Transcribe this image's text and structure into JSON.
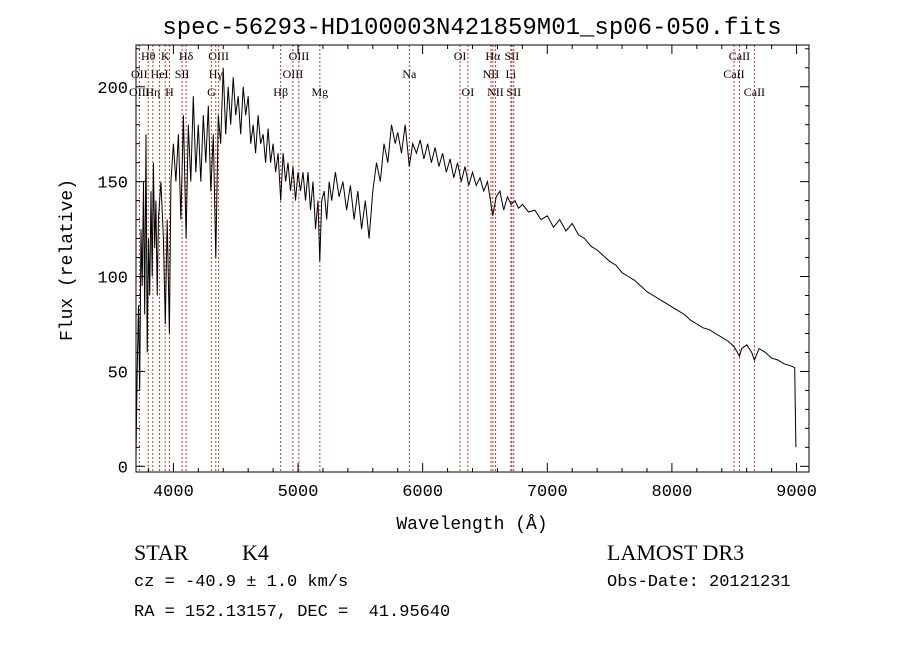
{
  "chart_data": {
    "type": "line",
    "title": "spec-56293-HD100003N421859M01_sp06-050.fits",
    "xlabel": "Wavelength (Å)",
    "ylabel": "Flux (relative)",
    "xlim": [
      3700,
      9100
    ],
    "ylim": [
      -3,
      222
    ],
    "x_ticks": [
      4000,
      5000,
      6000,
      7000,
      8000,
      9000
    ],
    "y_ticks": [
      0,
      50,
      100,
      150,
      200
    ],
    "series": [
      {
        "name": "flux",
        "color": "#000000",
        "points": [
          [
            3700,
            5
          ],
          [
            3710,
            50
          ],
          [
            3720,
            85
          ],
          [
            3730,
            40
          ],
          [
            3740,
            125
          ],
          [
            3750,
            95
          ],
          [
            3760,
            150
          ],
          [
            3770,
            80
          ],
          [
            3780,
            175
          ],
          [
            3790,
            60
          ],
          [
            3800,
            120
          ],
          [
            3810,
            90
          ],
          [
            3820,
            145
          ],
          [
            3830,
            100
          ],
          [
            3840,
            160
          ],
          [
            3850,
            115
          ],
          [
            3860,
            140
          ],
          [
            3870,
            90
          ],
          [
            3880,
            130
          ],
          [
            3900,
            150
          ],
          [
            3920,
            120
          ],
          [
            3935,
            75
          ],
          [
            3950,
            130
          ],
          [
            3968,
            70
          ],
          [
            3980,
            150
          ],
          [
            4000,
            170
          ],
          [
            4020,
            150
          ],
          [
            4040,
            175
          ],
          [
            4060,
            130
          ],
          [
            4080,
            185
          ],
          [
            4102,
            120
          ],
          [
            4120,
            180
          ],
          [
            4140,
            150
          ],
          [
            4160,
            195
          ],
          [
            4180,
            155
          ],
          [
            4200,
            180
          ],
          [
            4220,
            150
          ],
          [
            4240,
            185
          ],
          [
            4260,
            160
          ],
          [
            4280,
            190
          ],
          [
            4300,
            145
          ],
          [
            4320,
            175
          ],
          [
            4340,
            110
          ],
          [
            4360,
            185
          ],
          [
            4380,
            170
          ],
          [
            4400,
            210
          ],
          [
            4420,
            175
          ],
          [
            4440,
            200
          ],
          [
            4460,
            180
          ],
          [
            4480,
            205
          ],
          [
            4500,
            185
          ],
          [
            4520,
            195
          ],
          [
            4540,
            175
          ],
          [
            4560,
            200
          ],
          [
            4580,
            185
          ],
          [
            4600,
            195
          ],
          [
            4620,
            170
          ],
          [
            4640,
            180
          ],
          [
            4660,
            165
          ],
          [
            4680,
            185
          ],
          [
            4700,
            170
          ],
          [
            4720,
            175
          ],
          [
            4740,
            160
          ],
          [
            4760,
            178
          ],
          [
            4780,
            160
          ],
          [
            4800,
            170
          ],
          [
            4820,
            155
          ],
          [
            4840,
            165
          ],
          [
            4861,
            140
          ],
          [
            4880,
            165
          ],
          [
            4900,
            150
          ],
          [
            4920,
            160
          ],
          [
            4940,
            145
          ],
          [
            4960,
            158
          ],
          [
            4980,
            140
          ],
          [
            5000,
            155
          ],
          [
            5020,
            145
          ],
          [
            5040,
            155
          ],
          [
            5060,
            140
          ],
          [
            5080,
            155
          ],
          [
            5100,
            135
          ],
          [
            5120,
            150
          ],
          [
            5140,
            125
          ],
          [
            5160,
            140
          ],
          [
            5175,
            108
          ],
          [
            5190,
            140
          ],
          [
            5210,
            145
          ],
          [
            5230,
            130
          ],
          [
            5250,
            150
          ],
          [
            5270,
            140
          ],
          [
            5300,
            155
          ],
          [
            5330,
            142
          ],
          [
            5360,
            150
          ],
          [
            5390,
            135
          ],
          [
            5420,
            148
          ],
          [
            5450,
            130
          ],
          [
            5480,
            145
          ],
          [
            5510,
            125
          ],
          [
            5540,
            140
          ],
          [
            5570,
            120
          ],
          [
            5600,
            145
          ],
          [
            5630,
            160
          ],
          [
            5660,
            150
          ],
          [
            5690,
            170
          ],
          [
            5720,
            160
          ],
          [
            5750,
            180
          ],
          [
            5780,
            170
          ],
          [
            5800,
            176
          ],
          [
            5830,
            165
          ],
          [
            5860,
            180
          ],
          [
            5893,
            158
          ],
          [
            5920,
            170
          ],
          [
            5950,
            165
          ],
          [
            5980,
            172
          ],
          [
            6010,
            162
          ],
          [
            6040,
            170
          ],
          [
            6070,
            160
          ],
          [
            6100,
            168
          ],
          [
            6130,
            158
          ],
          [
            6160,
            165
          ],
          [
            6190,
            155
          ],
          [
            6220,
            162
          ],
          [
            6250,
            152
          ],
          [
            6280,
            160
          ],
          [
            6310,
            150
          ],
          [
            6340,
            158
          ],
          [
            6370,
            148
          ],
          [
            6400,
            155
          ],
          [
            6430,
            148
          ],
          [
            6460,
            152
          ],
          [
            6490,
            145
          ],
          [
            6520,
            150
          ],
          [
            6563,
            132
          ],
          [
            6590,
            142
          ],
          [
            6620,
            145
          ],
          [
            6650,
            135
          ],
          [
            6680,
            142
          ],
          [
            6710,
            138
          ],
          [
            6740,
            140
          ],
          [
            6770,
            136
          ],
          [
            6800,
            138
          ],
          [
            6850,
            134
          ],
          [
            6900,
            135
          ],
          [
            6950,
            130
          ],
          [
            7000,
            132
          ],
          [
            7050,
            126
          ],
          [
            7100,
            130
          ],
          [
            7150,
            124
          ],
          [
            7200,
            128
          ],
          [
            7250,
            122
          ],
          [
            7300,
            120
          ],
          [
            7350,
            116
          ],
          [
            7400,
            114
          ],
          [
            7450,
            111
          ],
          [
            7500,
            108
          ],
          [
            7550,
            106
          ],
          [
            7600,
            102
          ],
          [
            7650,
            100
          ],
          [
            7700,
            98
          ],
          [
            7750,
            95
          ],
          [
            7800,
            92
          ],
          [
            7850,
            90
          ],
          [
            7900,
            88
          ],
          [
            7950,
            86
          ],
          [
            8000,
            84
          ],
          [
            8050,
            82
          ],
          [
            8100,
            80
          ],
          [
            8150,
            77
          ],
          [
            8200,
            75
          ],
          [
            8250,
            73
          ],
          [
            8300,
            72
          ],
          [
            8350,
            70
          ],
          [
            8400,
            68
          ],
          [
            8450,
            66
          ],
          [
            8500,
            63
          ],
          [
            8542,
            58
          ],
          [
            8560,
            62
          ],
          [
            8600,
            64
          ],
          [
            8640,
            60
          ],
          [
            8662,
            56
          ],
          [
            8700,
            62
          ],
          [
            8750,
            60
          ],
          [
            8800,
            57
          ],
          [
            8850,
            56
          ],
          [
            8900,
            54
          ],
          [
            8950,
            53
          ],
          [
            8985,
            52
          ],
          [
            8995,
            10
          ]
        ]
      }
    ],
    "lines": [
      {
        "label": "Hθ",
        "wave": 3798,
        "tier": 0
      },
      {
        "label": "OII",
        "wave": 3727,
        "tier": 1
      },
      {
        "label": "OIII",
        "wave": 3727,
        "tier": 2
      },
      {
        "label": "K",
        "wave": 3934,
        "tier": 0
      },
      {
        "label": "HeI",
        "wave": 3889,
        "tier": 1
      },
      {
        "label": "Hη",
        "wave": 3835,
        "tier": 2
      },
      {
        "label": "Hδ",
        "wave": 4102,
        "tier": 0
      },
      {
        "label": "SII",
        "wave": 4070,
        "tier": 1
      },
      {
        "label": "H",
        "wave": 3968,
        "tier": 2
      },
      {
        "label": "OIII",
        "wave": 4363,
        "tier": 0
      },
      {
        "label": "Hγ",
        "wave": 4340,
        "tier": 1
      },
      {
        "label": "G",
        "wave": 4305,
        "tier": 2
      },
      {
        "label": "OIII",
        "wave": 5007,
        "tier": 0
      },
      {
        "label": "OIII",
        "wave": 4959,
        "tier": 1
      },
      {
        "label": "Hβ",
        "wave": 4861,
        "tier": 2
      },
      {
        "label": "Mg",
        "wave": 5175,
        "tier": 2
      },
      {
        "label": "Na",
        "wave": 5893,
        "tier": 1
      },
      {
        "label": "OI",
        "wave": 6300,
        "tier": 0
      },
      {
        "label": "OI",
        "wave": 6363,
        "tier": 2
      },
      {
        "label": "Hα",
        "wave": 6563,
        "tier": 0
      },
      {
        "label": "SII",
        "wave": 6716,
        "tier": 0
      },
      {
        "label": "NII",
        "wave": 6548,
        "tier": 1
      },
      {
        "label": "Li",
        "wave": 6708,
        "tier": 1
      },
      {
        "label": "NII",
        "wave": 6584,
        "tier": 2
      },
      {
        "label": "SII",
        "wave": 6731,
        "tier": 2
      },
      {
        "label": "CaII",
        "wave": 8542,
        "tier": 0
      },
      {
        "label": "CaII",
        "wave": 8498,
        "tier": 1
      },
      {
        "label": "CaII",
        "wave": 8662,
        "tier": 2
      }
    ]
  },
  "info": {
    "object_class": "STAR",
    "subclass": "K4",
    "survey": "LAMOST DR3",
    "redshift": "cz = -40.9 ± 1.0 km/s",
    "obs_date": "Obs-Date: 20121231",
    "coords": "RA = 152.13157, DEC =  41.95640"
  }
}
